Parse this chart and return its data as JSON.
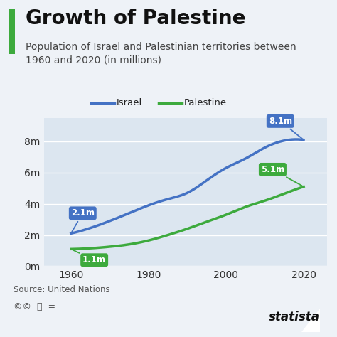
{
  "title": "Growth of Palestine",
  "subtitle": "Population of Israel and Palestinian territories between\n1960 and 2020 (in millions)",
  "source": "Source: United Nations",
  "israel_color": "#4472C4",
  "palestine_color": "#3DAA3D",
  "bg_color": "#eef2f7",
  "plot_bg": "#dce6f0",
  "israel_years": [
    1960,
    1965,
    1970,
    1975,
    1980,
    1985,
    1990,
    1995,
    2000,
    2005,
    2010,
    2015,
    2020
  ],
  "israel_values": [
    2.1,
    2.45,
    2.9,
    3.4,
    3.9,
    4.3,
    4.7,
    5.5,
    6.3,
    6.9,
    7.6,
    8.05,
    8.1
  ],
  "palestine_years": [
    1960,
    1965,
    1970,
    1975,
    1980,
    1985,
    1990,
    1995,
    2000,
    2005,
    2010,
    2015,
    2020
  ],
  "palestine_values": [
    1.1,
    1.15,
    1.25,
    1.4,
    1.65,
    2.0,
    2.4,
    2.85,
    3.3,
    3.8,
    4.2,
    4.65,
    5.1
  ],
  "ylim": [
    0,
    9.5
  ],
  "yticks": [
    0,
    2,
    4,
    6,
    8
  ],
  "ytick_labels": [
    "0m",
    "2m",
    "4m",
    "6m",
    "8m"
  ],
  "xticks": [
    1960,
    1980,
    2000,
    2020
  ],
  "accent_color": "#3DAA3D",
  "title_fontsize": 20,
  "subtitle_fontsize": 10,
  "tick_fontsize": 10
}
